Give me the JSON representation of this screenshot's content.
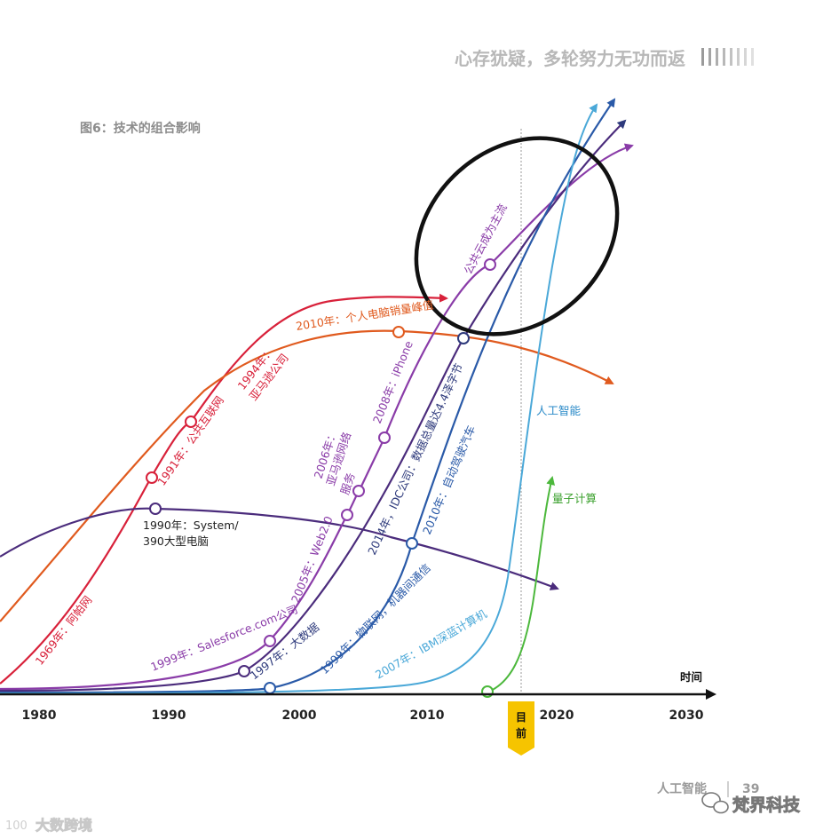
{
  "header": {
    "title": "心存犹疑，多轮努力无功而返"
  },
  "figure": {
    "caption": "图6：技术的组合影响"
  },
  "axis": {
    "label": "时间",
    "years": [
      "1980",
      "1990",
      "2000",
      "2010",
      "2020",
      "2030"
    ]
  },
  "now_marker": {
    "line1": "目",
    "line2": "前"
  },
  "colors": {
    "red": "#d8213a",
    "orange": "#e05a1e",
    "indigo": "#4b2c7c",
    "purple": "#8a3ca8",
    "navy": "#2e3a7c",
    "blue": "#2a5aa8",
    "cyan": "#4aa8d8",
    "green": "#4cb83c",
    "ellipse": "#111111",
    "now": "#f6c400"
  },
  "annotations": {
    "arpanet": "1969年：阿帕网",
    "internet": "1991年：公共互联网",
    "amazon_1": "1994年：",
    "amazon_2": "亚马逊公司",
    "pc_peak": "2010年：个人电脑销量峰值",
    "ibm_1": "1990年：System/",
    "ibm_2": "390大型电脑",
    "salesforce": "1999年：Salesforce.com公司",
    "web20": "2005年：Web2.0",
    "social_1": "2006年：",
    "social_2": "亚马逊网络",
    "social_3": "服务",
    "iphone": "2008年：iPhone",
    "cloud": "公共云成为主流",
    "bigdata": "1997年：大数据",
    "idc": "2014年，IDC公司：数据总量达4.4泽字节",
    "iot": "1999年：物联网，机器间通信",
    "selfdriving": "2010年：自动驾驶汽车",
    "watson": "2007年：IBM深蓝计算机",
    "ai": "人工智能",
    "quantum": "量子计算"
  },
  "footer": {
    "section": "人工智能",
    "page": "39"
  },
  "watermarks": {
    "left": "大数跨境",
    "right": "梵界科技"
  }
}
